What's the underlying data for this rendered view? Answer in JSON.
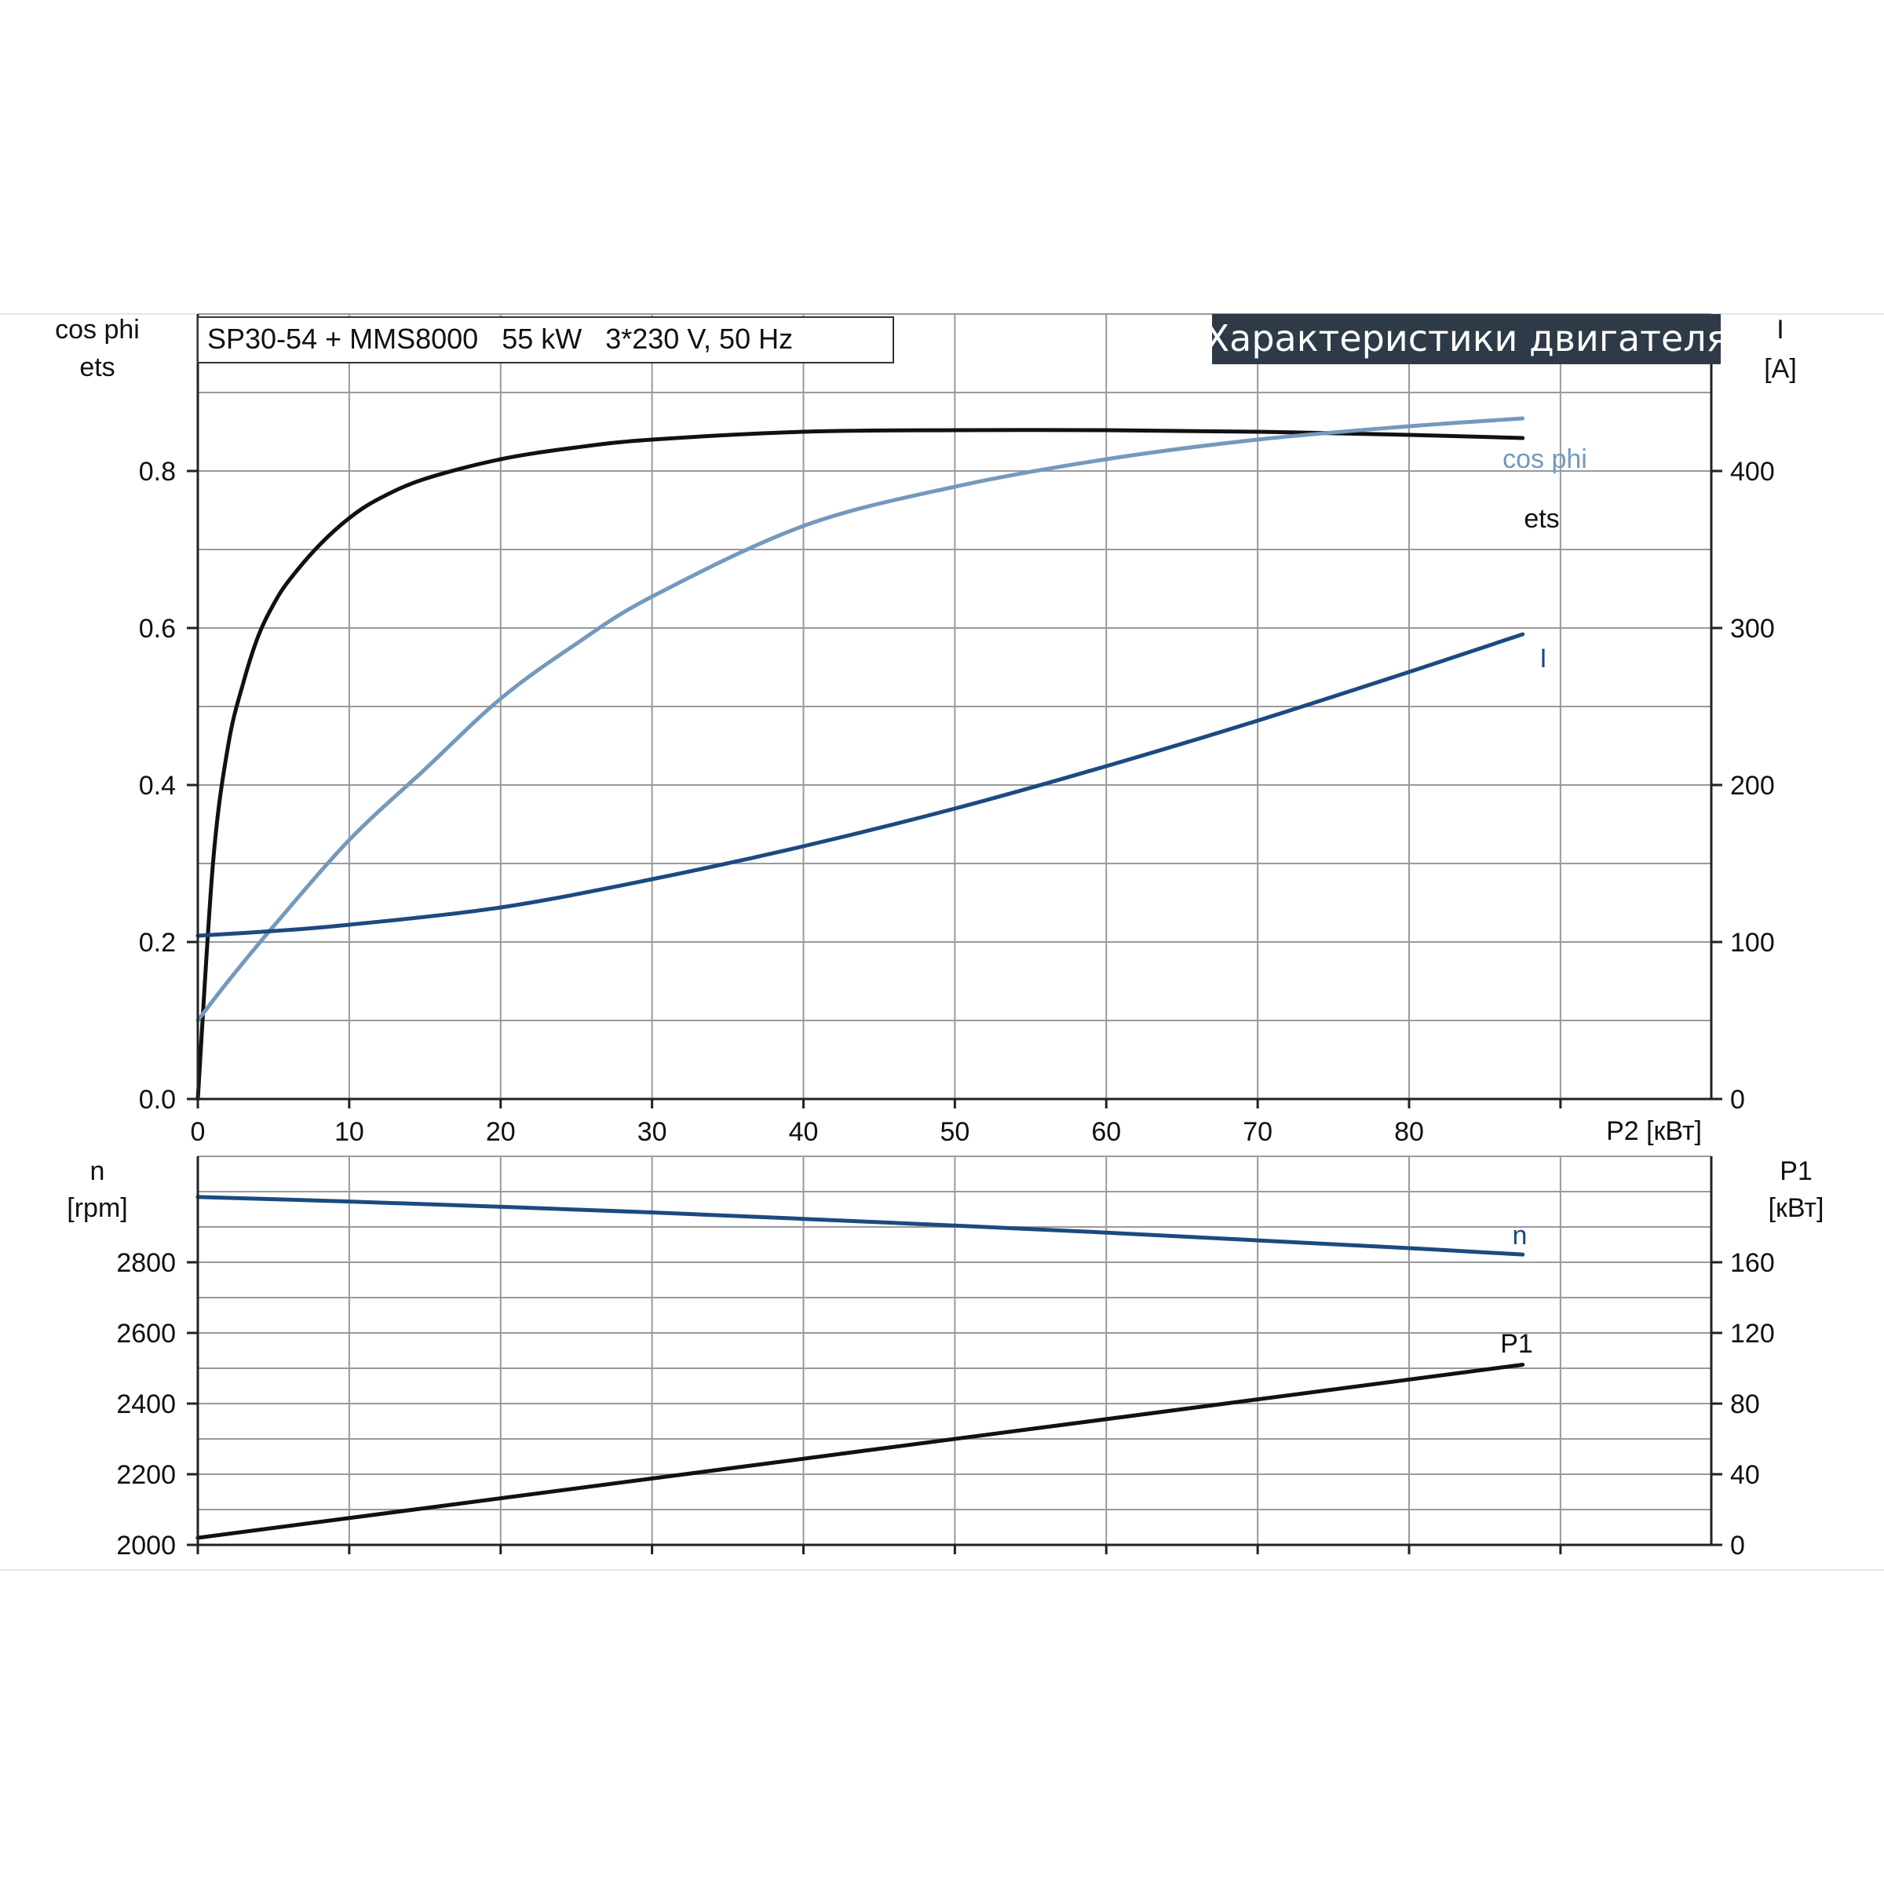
{
  "header": {
    "model_label": "SP30-54 + MMS8000   55 kW   3*230 V, 50 Hz",
    "banner": "Характеристики двигателя"
  },
  "colors": {
    "ets": "#111111",
    "cos_phi": "#7399bd",
    "I": "#1c4a7f",
    "n": "#1c4a7f",
    "P1": "#111111",
    "banner_bg": "#2e3a48"
  },
  "chart_data": [
    {
      "type": "line",
      "xlabel": "P2 [кВт]",
      "xlim": [
        0,
        100
      ],
      "x_ticks": [
        0,
        10,
        20,
        30,
        40,
        50,
        60,
        70,
        80
      ],
      "grid": true,
      "y_left": {
        "label_lines": [
          "cos phi",
          "ets"
        ],
        "ylim": [
          0,
          1.0
        ],
        "ticks": [
          0.0,
          0.2,
          0.4,
          0.6,
          0.8
        ],
        "tick_labels": [
          "0.0",
          "0.2",
          "0.4",
          "0.6",
          "0.8"
        ]
      },
      "y_right": {
        "label_lines": [
          "I",
          "[A]"
        ],
        "ylim": [
          0,
          500
        ],
        "ticks": [
          0,
          100,
          200,
          300,
          400
        ],
        "tick_labels": [
          "0",
          "100",
          "200",
          "300",
          "400"
        ]
      },
      "series": [
        {
          "name": "ets",
          "axis": "left",
          "x": [
            0,
            1,
            2,
            3,
            4,
            5,
            6,
            8,
            10,
            12,
            15,
            20,
            25,
            30,
            40,
            50,
            60,
            70,
            80,
            87.5
          ],
          "y": [
            0.0,
            0.3,
            0.45,
            0.53,
            0.59,
            0.63,
            0.66,
            0.705,
            0.74,
            0.765,
            0.79,
            0.815,
            0.83,
            0.84,
            0.85,
            0.852,
            0.852,
            0.85,
            0.846,
            0.842
          ]
        },
        {
          "name": "cos phi",
          "axis": "left",
          "x": [
            0,
            2,
            5,
            10,
            15,
            20,
            25,
            30,
            40,
            50,
            60,
            70,
            80,
            87.5
          ],
          "y": [
            0.1,
            0.15,
            0.22,
            0.33,
            0.42,
            0.51,
            0.58,
            0.64,
            0.73,
            0.78,
            0.815,
            0.84,
            0.857,
            0.867
          ]
        },
        {
          "name": "I",
          "axis": "right",
          "x": [
            0,
            5,
            10,
            20,
            30,
            40,
            50,
            60,
            70,
            80,
            87.5
          ],
          "y": [
            104,
            107,
            111,
            122,
            140,
            161,
            185,
            212,
            241,
            272,
            296
          ]
        }
      ]
    },
    {
      "type": "line",
      "xlabel": "",
      "xlim": [
        0,
        100
      ],
      "x_ticks": [
        0,
        10,
        20,
        30,
        40,
        50,
        60,
        70,
        80
      ],
      "grid": true,
      "y_left": {
        "label_lines": [
          "n",
          "[rpm]"
        ],
        "ylim": [
          2000,
          3100
        ],
        "ticks": [
          2000,
          2200,
          2400,
          2600,
          2800
        ],
        "tick_labels": [
          "2000",
          "2200",
          "2400",
          "2600",
          "2800"
        ]
      },
      "y_right": {
        "label_lines": [
          "P1",
          "[кВт]"
        ],
        "ylim": [
          0,
          220
        ],
        "ticks": [
          0,
          40,
          80,
          120,
          160
        ],
        "tick_labels": [
          "0",
          "40",
          "80",
          "120",
          "160"
        ]
      },
      "series": [
        {
          "name": "n",
          "axis": "left",
          "x": [
            0,
            10,
            20,
            30,
            40,
            50,
            60,
            70,
            80,
            87.5
          ],
          "y": [
            2985,
            2972,
            2957,
            2941,
            2923,
            2904,
            2884,
            2862,
            2840,
            2822
          ]
        },
        {
          "name": "P1",
          "axis": "right",
          "x": [
            0,
            87.5
          ],
          "y": [
            4,
            102
          ]
        }
      ]
    }
  ]
}
